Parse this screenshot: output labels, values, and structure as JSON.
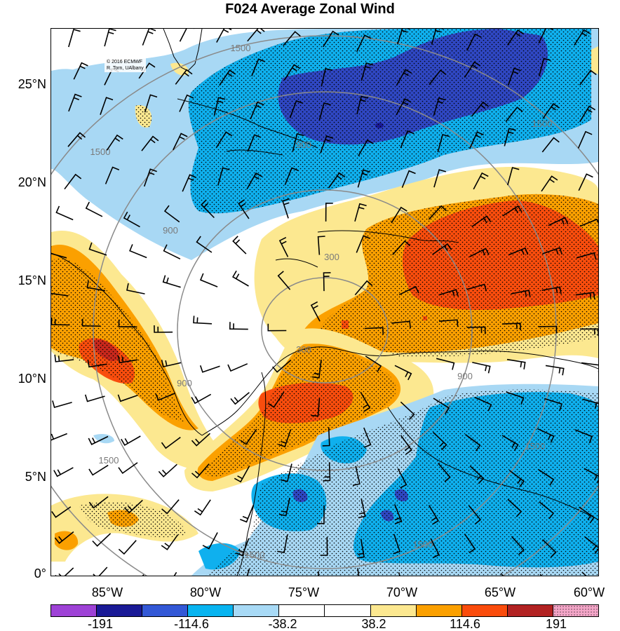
{
  "title": "F024 Average Zonal Wind",
  "credit": {
    "line1": "© 2016 ECMWF",
    "line2": "R. Torn, UAlbany"
  },
  "lat_labels": [
    "25°N",
    "20°N",
    "15°N",
    "10°N",
    "5°N",
    "0°"
  ],
  "lon_labels": [
    "85°W",
    "80°W",
    "75°W",
    "70°W",
    "65°W",
    "60°W"
  ],
  "contour_labels": [
    "1500",
    "900",
    "300",
    "300",
    "900",
    "1500",
    "1500",
    "900",
    "1500",
    "1500",
    "1500",
    "900",
    "1500"
  ],
  "colorbar": {
    "colors": [
      "#9e42d6",
      "#1a1a96",
      "#3358d6",
      "#08b4f0",
      "#a8daf6",
      "#ffffff",
      "#ffffff",
      "#fce890",
      "#fba000",
      "#fa4c0c",
      "#b22222",
      "#f4a6c8"
    ],
    "labels": [
      "-191",
      "-114.6",
      "-38.2",
      "38.2",
      "114.6",
      "191"
    ]
  },
  "palette": {
    "blue_dark": "#2f47c2",
    "blue_navy": "#1a1a96",
    "blue": "#0fb0ee",
    "blue_light": "#a8d8f4",
    "yellow": "#fce890",
    "orange": "#fba000",
    "red_orange": "#f94d0d",
    "red": "#c8281c"
  }
}
